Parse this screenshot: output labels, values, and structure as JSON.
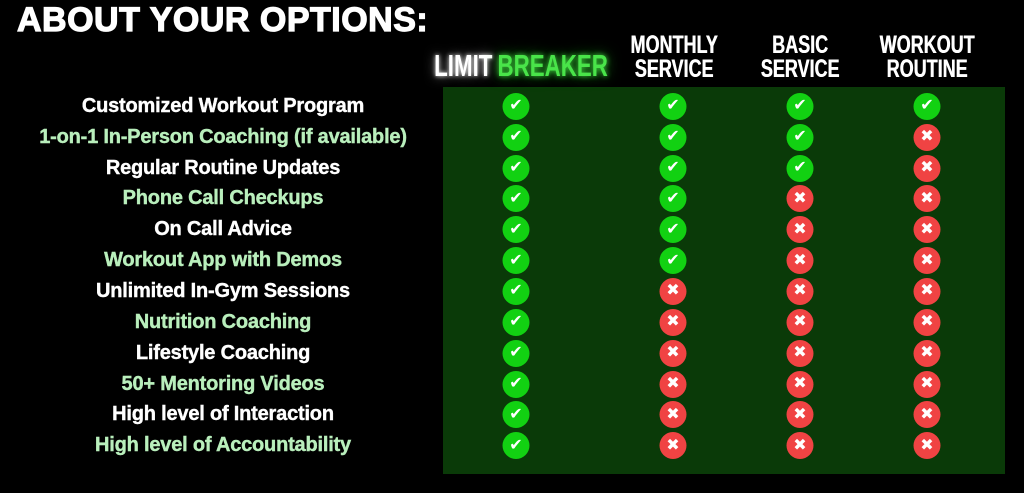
{
  "title": "ABOUT YOUR OPTIONS:",
  "icons": {
    "check": "✔",
    "cross": "✖"
  },
  "colors": {
    "background": "#000000",
    "panel": "#0a3a08",
    "check_circle": "#12d112",
    "cross_circle": "#f04343",
    "white_text": "#ffffff",
    "pale_green_text": "#b9efbc",
    "breaker_green": "#49e449"
  },
  "features": [
    {
      "label": "Customized Workout Program",
      "tone": "white"
    },
    {
      "label": "1-on-1 In-Person Coaching (if available)",
      "tone": "green"
    },
    {
      "label": "Regular Routine Updates",
      "tone": "white"
    },
    {
      "label": "Phone Call Checkups",
      "tone": "green"
    },
    {
      "label": "On Call Advice",
      "tone": "white"
    },
    {
      "label": "Workout App with Demos",
      "tone": "green"
    },
    {
      "label": "Unlimited In-Gym Sessions",
      "tone": "white"
    },
    {
      "label": "Nutrition Coaching",
      "tone": "green"
    },
    {
      "label": "Lifestyle Coaching",
      "tone": "white"
    },
    {
      "label": "50+ Mentoring Videos",
      "tone": "green"
    },
    {
      "label": "High level of Interaction",
      "tone": "white"
    },
    {
      "label": "High level of Accountability",
      "tone": "green"
    }
  ],
  "plans": [
    {
      "id": "limit-breaker",
      "name_parts": [
        {
          "text": "LIMIT",
          "tone": "white"
        },
        {
          "text": "BREAKER",
          "tone": "green"
        }
      ],
      "marks": [
        "check",
        "check",
        "check",
        "check",
        "check",
        "check",
        "check",
        "check",
        "check",
        "check",
        "check",
        "check"
      ]
    },
    {
      "id": "monthly-service",
      "name_lines": [
        "MONTHLY",
        "SERVICE"
      ],
      "marks": [
        "check",
        "check",
        "check",
        "check",
        "check",
        "check",
        "cross",
        "cross",
        "cross",
        "cross",
        "cross",
        "cross"
      ]
    },
    {
      "id": "basic-service",
      "name_lines": [
        "BASIC",
        "SERVICE"
      ],
      "marks": [
        "check",
        "check",
        "check",
        "cross",
        "cross",
        "cross",
        "cross",
        "cross",
        "cross",
        "cross",
        "cross",
        "cross"
      ]
    },
    {
      "id": "workout-routine",
      "name_lines": [
        "WORKOUT",
        "ROUTINE"
      ],
      "marks": [
        "check",
        "cross",
        "cross",
        "cross",
        "cross",
        "cross",
        "cross",
        "cross",
        "cross",
        "cross",
        "cross",
        "cross"
      ]
    }
  ],
  "chart_data": {
    "type": "table",
    "title": "ABOUT YOUR OPTIONS:",
    "columns": [
      "LIMIT BREAKER",
      "MONTHLY SERVICE",
      "BASIC SERVICE",
      "WORKOUT ROUTINE"
    ],
    "row_labels": [
      "Customized Workout Program",
      "1-on-1 In-Person Coaching (if available)",
      "Regular Routine Updates",
      "Phone Call Checkups",
      "On Call Advice",
      "Workout App with Demos",
      "Unlimited In-Gym Sessions",
      "Nutrition Coaching",
      "Lifestyle Coaching",
      "50+ Mentoring Videos",
      "High level of Interaction",
      "High level of Accountability"
    ],
    "values": [
      [
        true,
        true,
        true,
        true
      ],
      [
        true,
        true,
        true,
        false
      ],
      [
        true,
        true,
        true,
        false
      ],
      [
        true,
        true,
        false,
        false
      ],
      [
        true,
        true,
        false,
        false
      ],
      [
        true,
        true,
        false,
        false
      ],
      [
        true,
        false,
        false,
        false
      ],
      [
        true,
        false,
        false,
        false
      ],
      [
        true,
        false,
        false,
        false
      ],
      [
        true,
        false,
        false,
        false
      ],
      [
        true,
        false,
        false,
        false
      ],
      [
        true,
        false,
        false,
        false
      ]
    ],
    "legend": {
      "true": "included (green check)",
      "false": "not included (red cross)"
    },
    "layout": "feature labels left column; 4 plan columns on dark-green panel; grid off"
  }
}
